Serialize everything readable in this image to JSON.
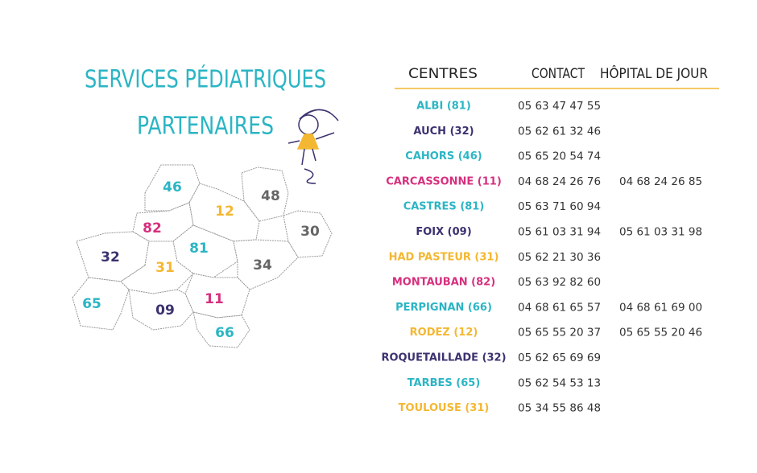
{
  "header": {
    "title_lines": [
      "SERVICES PÉDIATRIQUES",
      "PARTENAIRES"
    ],
    "color": "#2bb5c4"
  },
  "map": {
    "labels": [
      {
        "text": "46",
        "color": "#2bb5c4"
      },
      {
        "text": "48",
        "color": "#666666"
      },
      {
        "text": "12",
        "color": "#f4b731"
      },
      {
        "text": "82",
        "color": "#d6307e"
      },
      {
        "text": "30",
        "color": "#666666"
      },
      {
        "text": "81",
        "color": "#2bb5c4"
      },
      {
        "text": "32",
        "color": "#3b3270"
      },
      {
        "text": "31",
        "color": "#f4b731"
      },
      {
        "text": "34",
        "color": "#666666"
      },
      {
        "text": "65",
        "color": "#2bb5c4"
      },
      {
        "text": "11",
        "color": "#d6307e"
      },
      {
        "text": "09",
        "color": "#3b3270"
      },
      {
        "text": "66",
        "color": "#2bb5c4"
      }
    ]
  },
  "table": {
    "headers": [
      "CENTRES",
      "CONTACT",
      "HÔPITAL DE JOUR"
    ],
    "rule_color": "#f4b731",
    "rows": [
      {
        "center": "ALBI (81)",
        "contact": "05 63 47 47 55",
        "color": "#2bb5c4"
      },
      {
        "center": "AUCH (32)",
        "contact": "05 62 61 32 46",
        "color": "#3b3270"
      },
      {
        "center": "CAHORS (46)",
        "contact": "05 65 20 54 74",
        "color": "#2bb5c4"
      },
      {
        "center": "CARCASSONNE (11)",
        "contact": "04 68 24 26 76",
        "day_hospital": "04 68 24 26 85",
        "color": "#d6307e"
      },
      {
        "center": "CASTRES (81)",
        "contact": "05 63 71 60 94",
        "color": "#2bb5c4"
      },
      {
        "center": "FOIX (09)",
        "contact": "05 61 03 31 94",
        "day_hospital": "05 61 03 31 98",
        "color": "#3b3270"
      },
      {
        "center": "HAD PASTEUR (31)",
        "contact": "05 62 21 30 36",
        "color": "#f4b731"
      },
      {
        "center": "MONTAUBAN (82)",
        "contact": "05 63 92 82 60",
        "color": "#d6307e"
      },
      {
        "center": "PERPIGNAN (66)",
        "contact": "04 68 61 65 57",
        "day_hospital": "04 68 61 69 00",
        "color": "#2bb5c4"
      },
      {
        "center": "RODEZ (12)",
        "contact": "05 65 55 20 37",
        "day_hospital": "05 65 55 20 46",
        "color": "#f4b731"
      },
      {
        "center": "ROQUETAILLADE (32)",
        "contact": "05 62 65 69 69",
        "color": "#3b3270"
      },
      {
        "center": "TARBES (65)",
        "contact": "05 62 54 53 13",
        "color": "#2bb5c4"
      },
      {
        "center": "TOULOUSE (31)",
        "contact": "05 34 55 86 48",
        "color": "#f4b731"
      }
    ]
  }
}
